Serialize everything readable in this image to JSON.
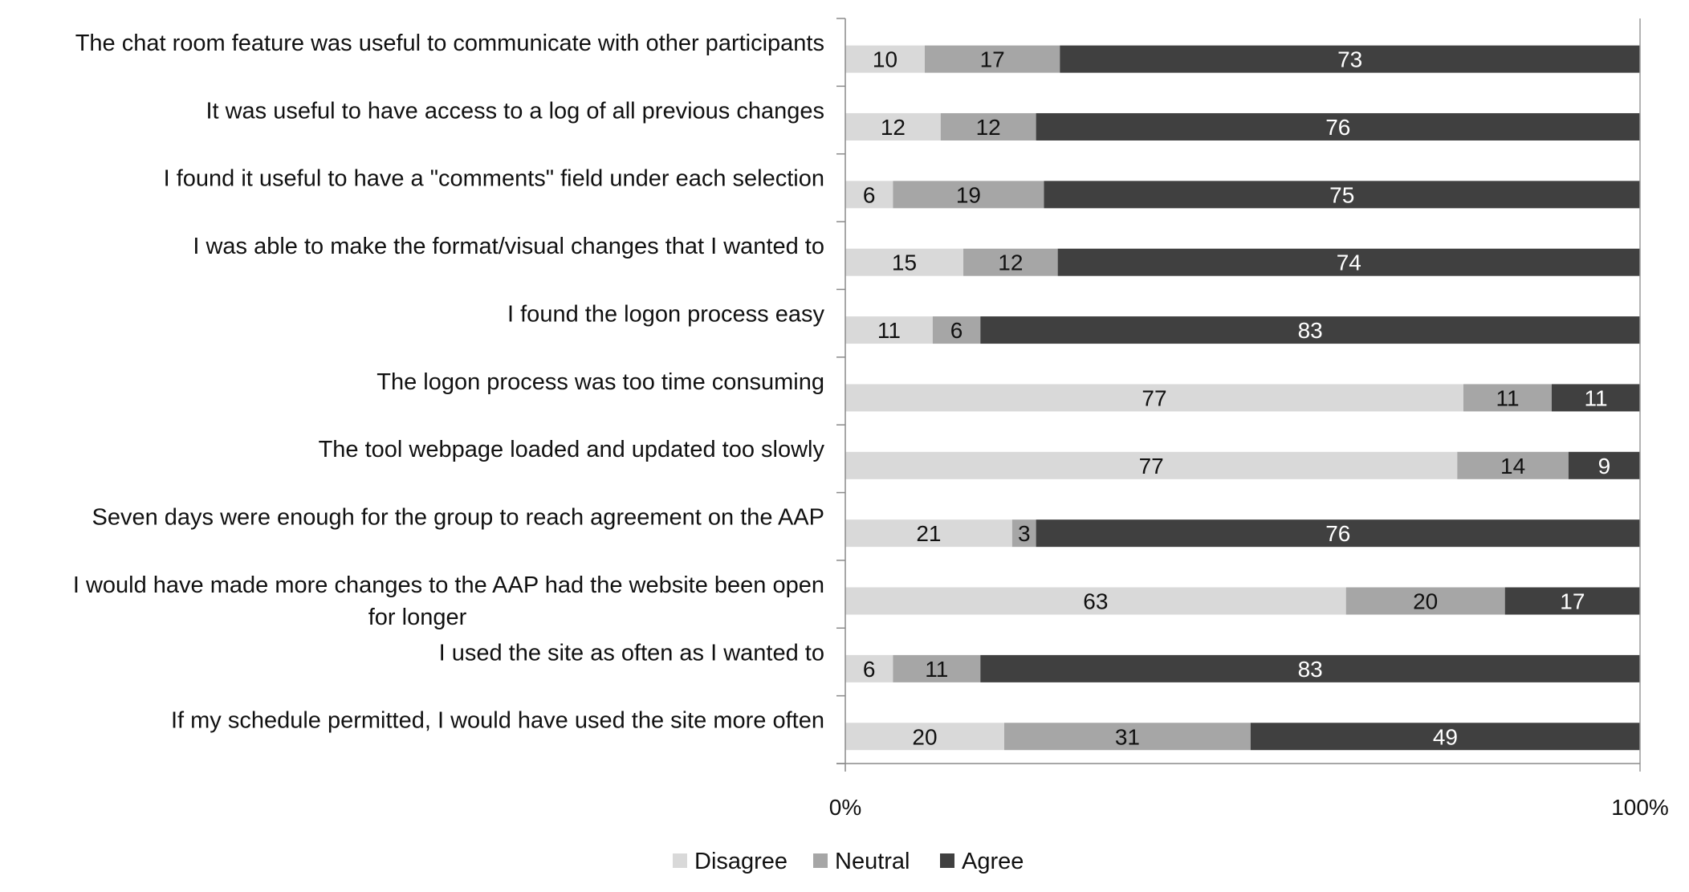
{
  "chart_data": {
    "type": "bar",
    "orientation": "horizontal",
    "stacked": "percent",
    "title": "",
    "xlabel": "",
    "ylabel": "",
    "xlim": [
      0,
      100
    ],
    "x_tick_labels": [
      "0%",
      "100%"
    ],
    "grid": false,
    "legend_position": "bottom",
    "categories": [
      "The chat room feature was useful to communicate with other participants",
      "It was useful to have access to a log of all previous changes",
      "I found it useful to have a \"comments\" field under each selection",
      "I was able to make the format/visual changes that I wanted to",
      "I found the logon process easy",
      "The logon process was too time consuming",
      "The tool webpage loaded and updated too slowly",
      "Seven days were enough for the group to reach agreement on the AAP",
      "I would have made more changes to the AAP had the website been open for longer",
      "I used the site as often as I wanted to",
      "If my schedule permitted, I would have used the site more often"
    ],
    "category_label_lines": [
      [
        "The chat room feature was useful to communicate with other participants"
      ],
      [
        "It was useful to have access to a log of all previous changes"
      ],
      [
        "I found it useful to have a \"comments\" field under each selection"
      ],
      [
        "I was able to make the format/visual changes that I wanted to"
      ],
      [
        "I found the logon process easy"
      ],
      [
        "The logon process was too time consuming"
      ],
      [
        "The tool webpage loaded and updated too slowly"
      ],
      [
        "Seven days were enough for the group to reach agreement on the AAP"
      ],
      [
        "I would have made more changes to the AAP had the website been open",
        "for longer"
      ],
      [
        "I used the site as often as I wanted to"
      ],
      [
        "If my schedule permitted, I would have used the site more often"
      ]
    ],
    "series": [
      {
        "name": "Disagree",
        "color": "#d9d9d9",
        "label_color": "#111111",
        "values": [
          10,
          12,
          6,
          15,
          11,
          77,
          77,
          21,
          63,
          6,
          20
        ]
      },
      {
        "name": "Neutral",
        "color": "#a6a6a6",
        "label_color": "#111111",
        "values": [
          17,
          12,
          19,
          12,
          6,
          11,
          14,
          3,
          20,
          11,
          31
        ]
      },
      {
        "name": "Agree",
        "color": "#404040",
        "label_color": "#ffffff",
        "values": [
          73,
          76,
          75,
          74,
          83,
          11,
          9,
          76,
          17,
          83,
          49
        ]
      }
    ]
  }
}
